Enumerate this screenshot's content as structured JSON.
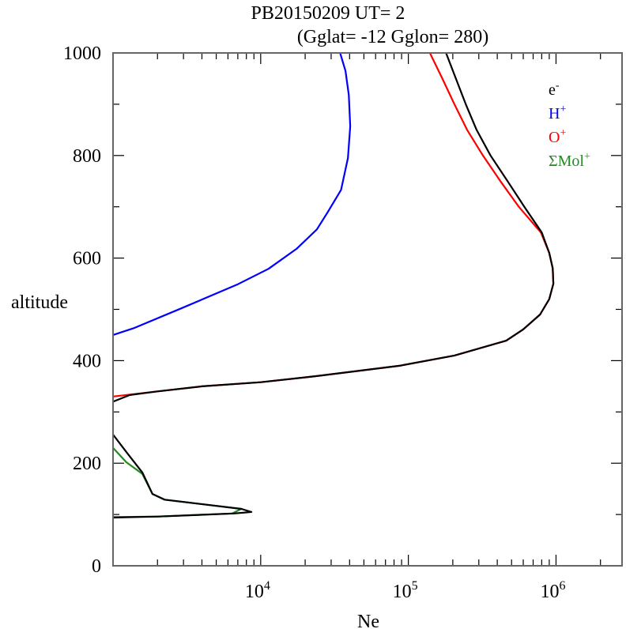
{
  "chart_data": {
    "type": "line",
    "title": "PB20150209   UT=  2",
    "subtitle": "(Gglat= -12   Gglon=  280)",
    "xlabel": "Ne",
    "ylabel": "altitude",
    "xscale": "log",
    "xlim": [
      1000,
      2800000
    ],
    "ylim": [
      0,
      1000
    ],
    "xticks": [
      {
        "value": 10000,
        "base": "10",
        "exp": "4"
      },
      {
        "value": 100000,
        "base": "10",
        "exp": "5"
      },
      {
        "value": 1000000,
        "base": "10",
        "exp": "6"
      }
    ],
    "yticks": [
      0,
      200,
      400,
      600,
      800,
      1000
    ],
    "grid": false,
    "legend_position": "top-right",
    "series": [
      {
        "name": "e",
        "sup": "-",
        "color": "#000000",
        "segments": [
          [
            [
              1000,
              256
            ],
            [
              1230,
              222
            ],
            [
              1580,
              182
            ],
            [
              1850,
              140
            ],
            [
              2230,
              129
            ],
            [
              7400,
              111
            ],
            [
              8650,
              105
            ],
            [
              6600,
              102
            ],
            [
              2020,
              96
            ],
            [
              1000,
              94
            ]
          ],
          [
            [
              1000,
              320
            ],
            [
              1300,
              333
            ],
            [
              2000,
              340
            ],
            [
              4000,
              350
            ],
            [
              10000,
              358
            ],
            [
              24000,
              370
            ],
            [
              87000,
              390
            ],
            [
              205000,
              410
            ],
            [
              460000,
              439
            ],
            [
              600000,
              461
            ],
            [
              780000,
              490
            ],
            [
              900000,
              520
            ],
            [
              960000,
              550
            ],
            [
              950000,
              580
            ],
            [
              900000,
              610
            ],
            [
              800000,
              650
            ],
            [
              610000,
              700
            ],
            [
              470000,
              750
            ],
            [
              360000,
              800
            ],
            [
              290000,
              850
            ],
            [
              245000,
              900
            ],
            [
              210000,
              950
            ],
            [
              180000,
              1000
            ]
          ]
        ]
      },
      {
        "name": "H",
        "sup": "+",
        "color": "#0000ff",
        "segments": [
          [
            [
              1000,
              450
            ],
            [
              1400,
              464
            ],
            [
              2900,
              502
            ],
            [
              6900,
              548
            ],
            [
              11300,
              579
            ],
            [
              17500,
              618
            ],
            [
              24000,
              656
            ],
            [
              28500,
              690
            ],
            [
              35000,
              733
            ],
            [
              39000,
              795
            ],
            [
              40400,
              857
            ],
            [
              39500,
              918
            ],
            [
              37500,
              965
            ],
            [
              34500,
              1000
            ]
          ]
        ]
      },
      {
        "name": "O",
        "sup": "+",
        "color": "#ff0000",
        "segments": [
          [
            [
              1000,
              330
            ],
            [
              2000,
              340
            ],
            [
              4000,
              350
            ],
            [
              10000,
              358
            ],
            [
              24000,
              370
            ],
            [
              87000,
              390
            ],
            [
              205000,
              410
            ],
            [
              460000,
              439
            ],
            [
              600000,
              461
            ],
            [
              780000,
              490
            ],
            [
              900000,
              520
            ],
            [
              960000,
              550
            ],
            [
              950000,
              580
            ],
            [
              900000,
              610
            ],
            [
              790000,
              650
            ],
            [
              560000,
              700
            ],
            [
              420000,
              750
            ],
            [
              320000,
              800
            ],
            [
              250000,
              850
            ],
            [
              205000,
              900
            ],
            [
              170000,
              950
            ],
            [
              140000,
              1000
            ]
          ]
        ]
      },
      {
        "name": "ΣMol",
        "sup": "+",
        "color": "#228b22",
        "segments": [
          [
            [
              1000,
              230
            ],
            [
              1230,
              202
            ],
            [
              1580,
              179
            ],
            [
              1850,
              140
            ],
            [
              2230,
              129
            ],
            [
              7400,
              111
            ],
            [
              6400,
              102
            ],
            [
              2020,
              96
            ],
            [
              1000,
              95
            ]
          ]
        ]
      }
    ]
  }
}
